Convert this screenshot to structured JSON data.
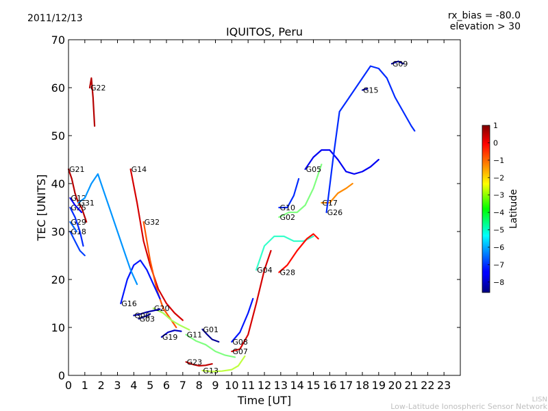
{
  "chart_data": {
    "type": "line",
    "date": "2011/12/13",
    "title": "IQUITOS, Peru",
    "info_lines": [
      "rx_bias = -80.0",
      "elevation > 30"
    ],
    "xlabel": "Time [UT]",
    "ylabel": "TEC [UNITS]",
    "xlim": [
      0,
      24
    ],
    "ylim": [
      0,
      70
    ],
    "xticks": [
      0,
      1,
      2,
      3,
      4,
      5,
      6,
      7,
      8,
      9,
      10,
      11,
      12,
      13,
      14,
      15,
      16,
      17,
      18,
      19,
      20,
      21,
      22,
      23
    ],
    "yticks": [
      0,
      10,
      20,
      30,
      40,
      50,
      60,
      70
    ],
    "colorbar": {
      "label": "Latitude",
      "range": [
        -8.6,
        1.0
      ],
      "ticks": [
        1,
        0,
        -1,
        -2,
        -3,
        -4,
        -5,
        -6,
        -7,
        -8
      ]
    },
    "grid": false,
    "series": [
      {
        "name": "G21",
        "lat": 0.5,
        "points": [
          [
            0.0,
            43
          ],
          [
            0.2,
            41
          ],
          [
            0.4,
            38
          ],
          [
            0.6,
            36
          ],
          [
            0.8,
            35
          ],
          [
            1.0,
            33
          ],
          [
            1.1,
            32
          ]
        ]
      },
      {
        "name": "G22",
        "lat": 0.5,
        "points": [
          [
            1.3,
            60
          ],
          [
            1.4,
            62
          ],
          [
            1.5,
            58
          ],
          [
            1.6,
            52
          ]
        ]
      },
      {
        "name": "G23",
        "lat": 0.4,
        "points": [
          [
            7.2,
            2.8
          ],
          [
            7.6,
            2.3
          ],
          [
            8.0,
            2.0
          ],
          [
            8.4,
            2.1
          ],
          [
            8.8,
            2.4
          ]
        ]
      },
      {
        "name": "G13",
        "lat": -3.2,
        "points": [
          [
            8.2,
            1.0
          ],
          [
            8.8,
            0.8
          ],
          [
            9.4,
            0.9
          ],
          [
            10.0,
            1.2
          ],
          [
            10.4,
            2.0
          ],
          [
            10.8,
            4.0
          ]
        ]
      },
      {
        "name": "G11",
        "lat": -3.8,
        "points": [
          [
            7.2,
            8.5
          ],
          [
            7.8,
            7.2
          ],
          [
            8.4,
            6.4
          ],
          [
            9.0,
            5.0
          ],
          [
            9.6,
            4.2
          ],
          [
            10.2,
            3.8
          ]
        ]
      },
      {
        "name": "G01",
        "lat": -8.4,
        "points": [
          [
            8.2,
            9.6
          ],
          [
            8.5,
            8.5
          ],
          [
            8.8,
            7.5
          ],
          [
            9.2,
            7.0
          ]
        ]
      },
      {
        "name": "G07",
        "lat": 0.2,
        "points": [
          [
            10.0,
            5.0
          ],
          [
            10.5,
            5.5
          ],
          [
            11.0,
            8.5
          ],
          [
            11.5,
            15
          ],
          [
            12.0,
            22
          ],
          [
            12.4,
            26
          ]
        ]
      },
      {
        "name": "G08",
        "lat": -7.2,
        "points": [
          [
            10.0,
            7.0
          ],
          [
            10.5,
            9.0
          ],
          [
            11.0,
            13.0
          ],
          [
            11.3,
            16.0
          ]
        ]
      },
      {
        "name": "G04",
        "lat": -4.5,
        "points": [
          [
            11.5,
            22
          ],
          [
            12.0,
            27
          ],
          [
            12.6,
            29
          ],
          [
            13.2,
            29
          ],
          [
            13.8,
            28
          ],
          [
            14.4,
            28
          ],
          [
            15.0,
            29
          ]
        ]
      },
      {
        "name": "G28",
        "lat": -0.3,
        "points": [
          [
            12.9,
            21.5
          ],
          [
            13.4,
            23
          ],
          [
            14.0,
            26
          ],
          [
            14.6,
            28.5
          ],
          [
            15.0,
            29.5
          ],
          [
            15.3,
            28.5
          ]
        ]
      },
      {
        "name": "G10",
        "lat": -7.0,
        "points": [
          [
            12.9,
            35
          ],
          [
            13.4,
            35
          ],
          [
            13.8,
            37.5
          ],
          [
            14.1,
            41
          ]
        ]
      },
      {
        "name": "G02",
        "lat": -3.8,
        "points": [
          [
            12.9,
            33
          ],
          [
            13.5,
            34
          ],
          [
            14.0,
            34
          ],
          [
            14.5,
            35.5
          ],
          [
            15.0,
            39
          ],
          [
            15.5,
            44
          ]
        ]
      },
      {
        "name": "G05",
        "lat": -7.5,
        "points": [
          [
            14.5,
            43
          ],
          [
            15.0,
            45.5
          ],
          [
            15.5,
            47
          ],
          [
            16.0,
            47
          ],
          [
            16.5,
            45
          ],
          [
            17.0,
            42.5
          ],
          [
            17.5,
            42
          ],
          [
            18.0,
            42.5
          ],
          [
            18.5,
            43.5
          ],
          [
            19.0,
            45
          ]
        ]
      },
      {
        "name": "G17",
        "lat": -1.5,
        "points": [
          [
            15.5,
            36
          ],
          [
            16.0,
            36
          ],
          [
            16.5,
            38
          ],
          [
            17.0,
            39
          ],
          [
            17.4,
            40
          ]
        ]
      },
      {
        "name": "G26",
        "lat": -7.0,
        "points": [
          [
            15.8,
            34
          ],
          [
            16.2,
            45
          ],
          [
            16.6,
            55
          ],
          [
            17.0,
            57
          ],
          [
            17.5,
            59.5
          ],
          [
            18.0,
            62
          ],
          [
            18.5,
            64.5
          ],
          [
            19.0,
            64
          ],
          [
            19.5,
            62
          ],
          [
            20.0,
            58
          ],
          [
            20.5,
            55
          ],
          [
            21.0,
            52
          ],
          [
            21.2,
            51
          ]
        ]
      },
      {
        "name": "G15",
        "lat": -8.3,
        "points": [
          [
            18.0,
            59.5
          ],
          [
            18.3,
            59.8
          ]
        ]
      },
      {
        "name": "G09",
        "lat": -8.3,
        "points": [
          [
            19.8,
            65
          ],
          [
            20.2,
            65.5
          ],
          [
            20.5,
            65
          ]
        ]
      },
      {
        "name": "G14",
        "lat": 0.2,
        "points": [
          [
            3.8,
            43
          ],
          [
            4.2,
            36
          ],
          [
            4.6,
            28
          ],
          [
            5.0,
            23
          ],
          [
            5.5,
            18
          ],
          [
            6.0,
            15
          ],
          [
            6.5,
            13
          ],
          [
            7.0,
            11.5
          ]
        ]
      },
      {
        "name": "G32",
        "lat": -1.0,
        "points": [
          [
            4.6,
            32
          ],
          [
            5.0,
            24
          ],
          [
            5.4,
            18
          ],
          [
            5.8,
            14
          ],
          [
            6.2,
            12
          ],
          [
            6.6,
            10
          ]
        ]
      },
      {
        "name": "G20",
        "lat": -3.4,
        "points": [
          [
            5.2,
            14
          ],
          [
            5.8,
            13
          ],
          [
            6.3,
            11.5
          ],
          [
            6.8,
            10.5
          ],
          [
            7.4,
            9.5
          ]
        ]
      },
      {
        "name": "G16",
        "lat": -7.2,
        "points": [
          [
            3.2,
            15
          ],
          [
            3.6,
            20
          ],
          [
            4.0,
            23
          ],
          [
            4.4,
            24
          ],
          [
            4.8,
            22
          ],
          [
            5.2,
            19
          ],
          [
            5.6,
            16
          ]
        ]
      },
      {
        "name": "G06",
        "lat": -8.2,
        "points": [
          [
            4.0,
            12.5
          ],
          [
            4.4,
            12.8
          ],
          [
            4.8,
            13.2
          ],
          [
            5.2,
            13.5
          ],
          [
            5.6,
            13.8
          ]
        ]
      },
      {
        "name": "G03",
        "lat": -8.5,
        "points": [
          [
            4.3,
            11.8
          ],
          [
            4.7,
            12.3
          ],
          [
            5.0,
            12.8
          ]
        ]
      },
      {
        "name": "G19",
        "lat": -8.0,
        "points": [
          [
            5.7,
            8.0
          ],
          [
            6.1,
            9.0
          ],
          [
            6.5,
            9.4
          ],
          [
            6.9,
            9.2
          ]
        ]
      },
      {
        "name": "G18",
        "lat": -6.8,
        "points": [
          [
            0.1,
            30
          ],
          [
            0.4,
            28
          ],
          [
            0.7,
            26
          ],
          [
            1.0,
            25
          ]
        ]
      },
      {
        "name": "G29",
        "lat": -6.5,
        "points": [
          [
            0.1,
            32
          ],
          [
            0.3,
            31
          ],
          [
            0.5,
            30
          ]
        ]
      },
      {
        "name": "G25",
        "lat": -7.0,
        "points": [
          [
            0.1,
            35
          ],
          [
            0.4,
            33
          ],
          [
            0.7,
            30
          ],
          [
            0.9,
            27
          ]
        ]
      },
      {
        "name": "G12",
        "lat": -7.5,
        "points": [
          [
            0.1,
            37
          ],
          [
            0.4,
            35.5
          ],
          [
            0.8,
            34
          ]
        ]
      },
      {
        "name": "G31",
        "lat": -6.0,
        "points": [
          [
            0.6,
            36
          ],
          [
            1.0,
            37
          ],
          [
            1.4,
            40
          ],
          [
            1.8,
            42
          ],
          [
            2.2,
            38
          ],
          [
            2.6,
            34
          ],
          [
            3.0,
            30
          ],
          [
            3.4,
            26
          ],
          [
            3.8,
            22
          ],
          [
            4.2,
            19
          ]
        ]
      }
    ]
  },
  "watermark": {
    "line1": "LISN",
    "line2": "Low-Latitude Ionospheric Sensor Network"
  }
}
